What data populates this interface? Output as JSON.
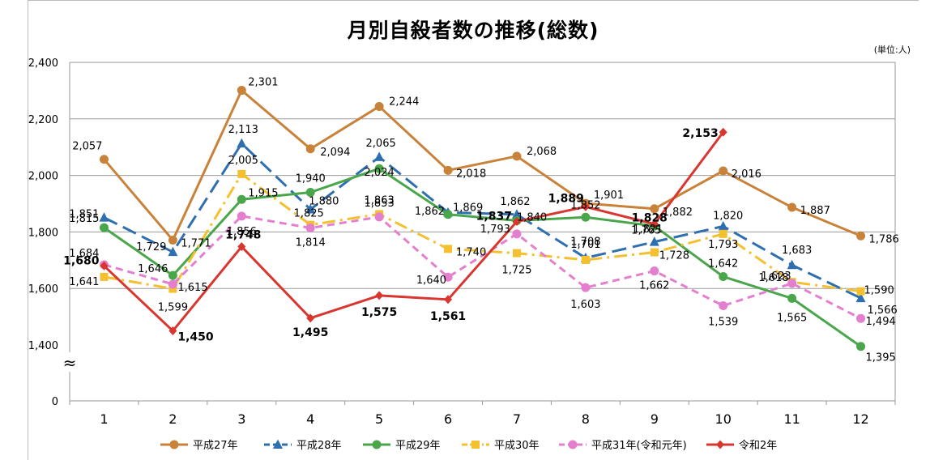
{
  "chart_data": {
    "type": "line",
    "title": "月別自殺者数の推移(総数)",
    "unit_note": "(単位:人)",
    "categories": [
      "1",
      "2",
      "3",
      "4",
      "5",
      "6",
      "7",
      "8",
      "9",
      "10",
      "11",
      "12"
    ],
    "ylim": [
      1400,
      2400
    ],
    "y_ticks": [
      1400,
      1600,
      1800,
      2000,
      2200,
      2400
    ],
    "y_tick_labels": [
      "1,400",
      "1,600",
      "1,800",
      "2,000",
      "2,200",
      "2,400"
    ],
    "y_zero_label": "0",
    "axis_break_symbol": "≈",
    "grid": true,
    "legend_position": "bottom",
    "series": [
      {
        "name": "平成27年",
        "color": "#c8823a",
        "marker": "circle",
        "dash": "solid",
        "values": [
          2057,
          1771,
          2301,
          2094,
          2244,
          2018,
          2068,
          1901,
          1882,
          2016,
          1887,
          1786
        ],
        "labels": [
          "2,057",
          "1,771",
          "2,301",
          "2,094",
          "2,244",
          "2,018",
          "2,068",
          "1,901",
          "1,882",
          "2,016",
          "1,887",
          "1,786"
        ]
      },
      {
        "name": "平成28年",
        "color": "#2e6fb0",
        "marker": "triangle",
        "dash": "longdash",
        "values": [
          1851,
          1729,
          2113,
          1880,
          2065,
          1869,
          1862,
          1708,
          1765,
          1820,
          1683,
          1566
        ],
        "labels": [
          "1,851",
          "1,729",
          "2,113",
          "1,880",
          "2,065",
          "1,869",
          "1,862",
          "1,708",
          "1,765",
          "1,820",
          "1,683",
          "1,566"
        ]
      },
      {
        "name": "平成29年",
        "color": "#4aa64a",
        "marker": "circle",
        "dash": "solid",
        "values": [
          1815,
          1646,
          1915,
          1940,
          2024,
          1862,
          1840,
          1852,
          1821,
          1642,
          1565,
          1395
        ],
        "labels": [
          "1,815",
          "1,646",
          "1,915",
          "1,940",
          "2,024",
          "1,862",
          "1,840",
          "1,852",
          "1,821",
          "1,642",
          "1,565",
          "1,395"
        ]
      },
      {
        "name": "平成30年",
        "color": "#f5c02f",
        "marker": "square",
        "dash": "dashdot",
        "values": [
          1641,
          1599,
          2005,
          1825,
          1863,
          1740,
          1725,
          1701,
          1728,
          1793,
          1623,
          1590
        ],
        "labels": [
          "1,641",
          "1,599",
          "2,005",
          "1,825",
          "1,863",
          "1,740",
          "1,725",
          "1,701",
          "1,728",
          "1,793",
          "1,623",
          "1,590"
        ]
      },
      {
        "name": "平成31年(令和元年)",
        "color": "#e47fd0",
        "marker": "circle",
        "dash": "dash",
        "values": [
          1684,
          1615,
          1856,
          1814,
          1853,
          1640,
          1793,
          1603,
          1662,
          1539,
          1618,
          1494
        ],
        "labels": [
          "1,684",
          "1,615",
          "1,856",
          "1,814",
          "1,853",
          "1,640",
          "1,793",
          "1,603",
          "1,662",
          "1,539",
          "1,618",
          "1,494"
        ]
      },
      {
        "name": "令和2年",
        "color": "#d9362f",
        "marker": "diamond",
        "dash": "solid",
        "values": [
          1680,
          1450,
          1748,
          1495,
          1575,
          1561,
          1837,
          1889,
          1828,
          2153,
          null,
          null
        ],
        "labels": [
          "1,680",
          "1,450",
          "1,748",
          "1,495",
          "1,575",
          "1,561",
          "1,837",
          "1,889",
          "1,828",
          "2,153",
          null,
          null
        ]
      }
    ]
  }
}
